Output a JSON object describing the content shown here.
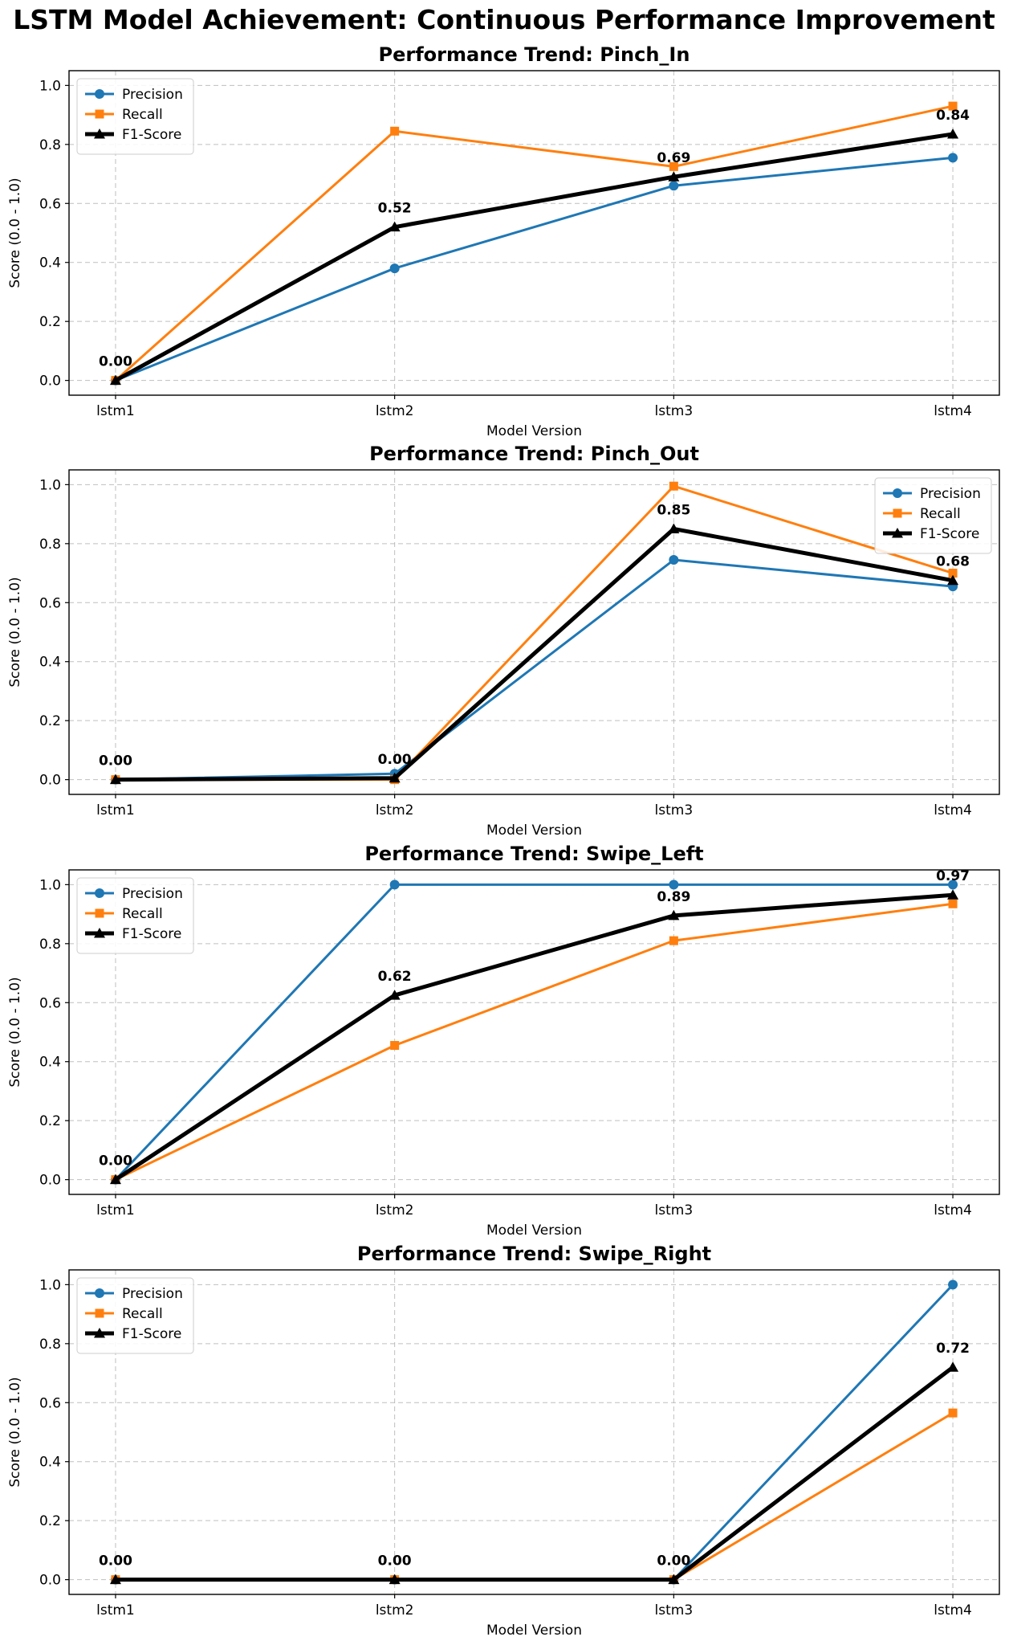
{
  "suptitle": "LSTM Model Achievement: Continuous Performance Improvement",
  "colors": {
    "precision": "#1f77b4",
    "recall": "#ff7f0e",
    "f1": "#000000"
  },
  "chart_data": [
    {
      "type": "line",
      "title": "Performance Trend: Pinch_In",
      "xlabel": "Model Version",
      "ylabel": "Score (0.0 - 1.0)",
      "categories": [
        "lstm1",
        "lstm2",
        "lstm3",
        "lstm4"
      ],
      "ylim": [
        -0.05,
        1.05
      ],
      "yticks": [
        "0.0",
        "0.2",
        "0.4",
        "0.6",
        "0.8",
        "1.0"
      ],
      "grid": true,
      "legend": "top-left",
      "series": [
        {
          "name": "Precision",
          "marker": "circle",
          "values": [
            0.0,
            0.38,
            0.66,
            0.755
          ]
        },
        {
          "name": "Recall",
          "marker": "square",
          "values": [
            0.0,
            0.845,
            0.725,
            0.93
          ]
        },
        {
          "name": "F1-Score",
          "marker": "triangle",
          "values": [
            0.0,
            0.52,
            0.69,
            0.835
          ]
        }
      ],
      "annotations": [
        "0.00",
        "0.52",
        "0.69",
        "0.84"
      ]
    },
    {
      "type": "line",
      "title": "Performance Trend: Pinch_Out",
      "xlabel": "Model Version",
      "ylabel": "Score (0.0 - 1.0)",
      "categories": [
        "lstm1",
        "lstm2",
        "lstm3",
        "lstm4"
      ],
      "ylim": [
        -0.05,
        1.05
      ],
      "yticks": [
        "0.0",
        "0.2",
        "0.4",
        "0.6",
        "0.8",
        "1.0"
      ],
      "grid": true,
      "legend": "top-right",
      "series": [
        {
          "name": "Precision",
          "marker": "circle",
          "values": [
            0.0,
            0.02,
            0.745,
            0.655
          ]
        },
        {
          "name": "Recall",
          "marker": "square",
          "values": [
            0.0,
            0.0,
            0.995,
            0.7
          ]
        },
        {
          "name": "F1-Score",
          "marker": "triangle",
          "values": [
            0.0,
            0.005,
            0.85,
            0.675
          ]
        }
      ],
      "annotations": [
        "0.00",
        "0.00",
        "0.85",
        "0.68"
      ]
    },
    {
      "type": "line",
      "title": "Performance Trend: Swipe_Left",
      "xlabel": "Model Version",
      "ylabel": "Score (0.0 - 1.0)",
      "categories": [
        "lstm1",
        "lstm2",
        "lstm3",
        "lstm4"
      ],
      "ylim": [
        -0.05,
        1.05
      ],
      "yticks": [
        "0.0",
        "0.2",
        "0.4",
        "0.6",
        "0.8",
        "1.0"
      ],
      "grid": true,
      "legend": "top-left",
      "series": [
        {
          "name": "Precision",
          "marker": "circle",
          "values": [
            0.0,
            1.0,
            1.0,
            1.0
          ]
        },
        {
          "name": "Recall",
          "marker": "square",
          "values": [
            0.0,
            0.455,
            0.81,
            0.935
          ]
        },
        {
          "name": "F1-Score",
          "marker": "triangle",
          "values": [
            0.0,
            0.625,
            0.895,
            0.965
          ]
        }
      ],
      "annotations": [
        "0.00",
        "0.62",
        "0.89",
        "0.97"
      ]
    },
    {
      "type": "line",
      "title": "Performance Trend: Swipe_Right",
      "xlabel": "Model Version",
      "ylabel": "Score (0.0 - 1.0)",
      "categories": [
        "lstm1",
        "lstm2",
        "lstm3",
        "lstm4"
      ],
      "ylim": [
        -0.05,
        1.05
      ],
      "yticks": [
        "0.0",
        "0.2",
        "0.4",
        "0.6",
        "0.8",
        "1.0"
      ],
      "grid": true,
      "legend": "top-left",
      "series": [
        {
          "name": "Precision",
          "marker": "circle",
          "values": [
            0.0,
            0.0,
            0.0,
            1.0
          ]
        },
        {
          "name": "Recall",
          "marker": "square",
          "values": [
            0.0,
            0.0,
            0.0,
            0.565
          ]
        },
        {
          "name": "F1-Score",
          "marker": "triangle",
          "values": [
            0.0,
            0.0,
            0.0,
            0.72
          ]
        }
      ],
      "annotations": [
        "0.00",
        "0.00",
        "0.00",
        "0.72"
      ]
    }
  ]
}
